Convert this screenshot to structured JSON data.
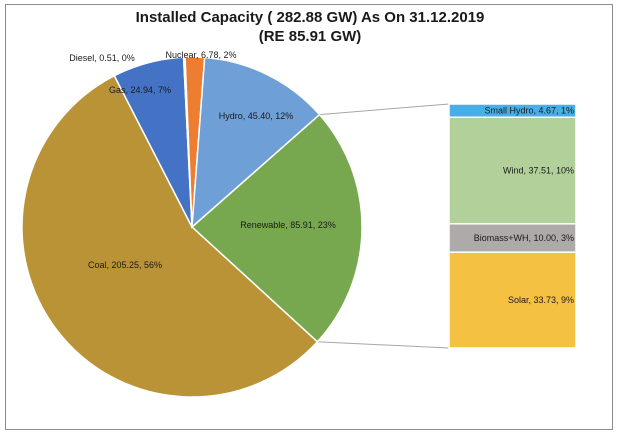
{
  "chart_data": {
    "type": "pie",
    "title_line1": "Installed Capacity ( 282.88 GW) As On 31.12.2019",
    "title_line2": "(RE 85.91 GW)",
    "slices": [
      {
        "label": "Renewable, 85.91, 23%",
        "value": 85.91,
        "color": "#77a84f"
      },
      {
        "label": "Coal, 205.25, 56%",
        "value": 205.25,
        "color": "#b99336"
      },
      {
        "label": "Gas, 24.94, 7%",
        "value": 24.94,
        "color": "#4472c4"
      },
      {
        "label": "Diesel, 0.51, 0%",
        "value": 0.51,
        "color": "#9e4a3e"
      },
      {
        "label": "Nuclear, 6.78, 2%",
        "value": 6.78,
        "color": "#ed7d31"
      },
      {
        "label": "Hydro, 45.40, 12%",
        "value": 45.4,
        "color": "#6e9fd6"
      }
    ],
    "breakdown_of": "Renewable",
    "breakdown": [
      {
        "label": "Small Hydro, 4.67, 1%",
        "value": 4.67,
        "color": "#48aee6"
      },
      {
        "label": "Wind, 37.51, 10%",
        "value": 37.51,
        "color": "#b2d19a"
      },
      {
        "label": "Biomass+WH, 10.00, 3%",
        "value": 10.0,
        "color": "#aeaaaa"
      },
      {
        "label": "Solar, 33.73, 9%",
        "value": 33.73,
        "color": "#f5c142"
      }
    ]
  }
}
